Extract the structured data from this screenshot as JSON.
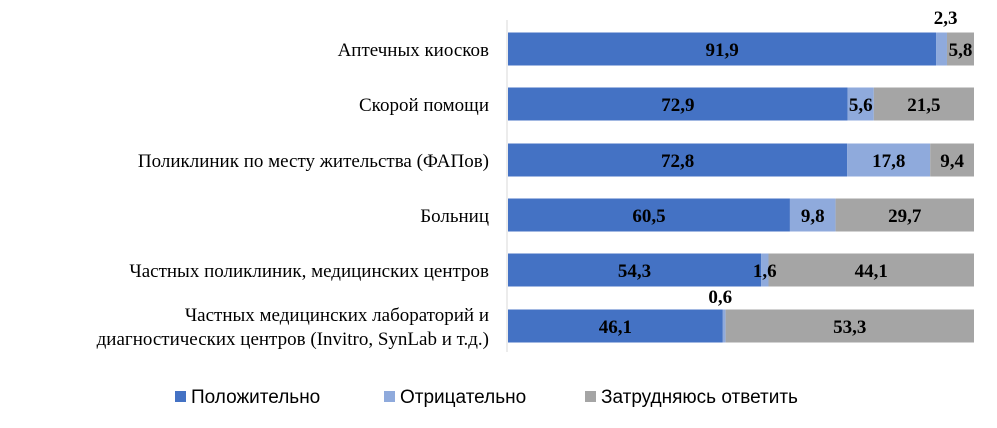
{
  "chart_data": {
    "type": "bar",
    "orientation": "horizontal",
    "stacked": true,
    "categories": [
      [
        "Аптечных киосков"
      ],
      [
        "Скорой помощи"
      ],
      [
        "Поликлиник  по месту жительства (ФАПов)"
      ],
      [
        "Больниц"
      ],
      [
        "Частных поликлиник, медицинских центров"
      ],
      [
        "Частных медицинских лабораторий и",
        "диагностических центров (Invitro, SynLab и т.д.)"
      ]
    ],
    "series": [
      {
        "name": "Положительно",
        "color": "#4472C4",
        "values": [
          91.9,
          72.9,
          72.8,
          60.5,
          54.3,
          46.1
        ],
        "labels": [
          "91,9",
          "72,9",
          "72,8",
          "60,5",
          "54,3",
          "46,1"
        ]
      },
      {
        "name": "Отрицательно",
        "color": "#8FAADC",
        "values": [
          2.3,
          5.6,
          17.8,
          9.8,
          1.6,
          0.6
        ],
        "labels": [
          "2,3",
          "5,6",
          "17,8",
          "9,8",
          "1,6",
          "0,6"
        ]
      },
      {
        "name": "Затрудняюсь ответить",
        "color": "#A5A5A5",
        "values": [
          5.8,
          21.5,
          9.4,
          29.7,
          44.1,
          53.3
        ],
        "labels": [
          "5,8",
          "21,5",
          "9,4",
          "29,7",
          "44,1",
          "53,3"
        ]
      }
    ],
    "xlim": [
      0,
      100
    ],
    "grid": false,
    "legend_position": "bottom"
  }
}
